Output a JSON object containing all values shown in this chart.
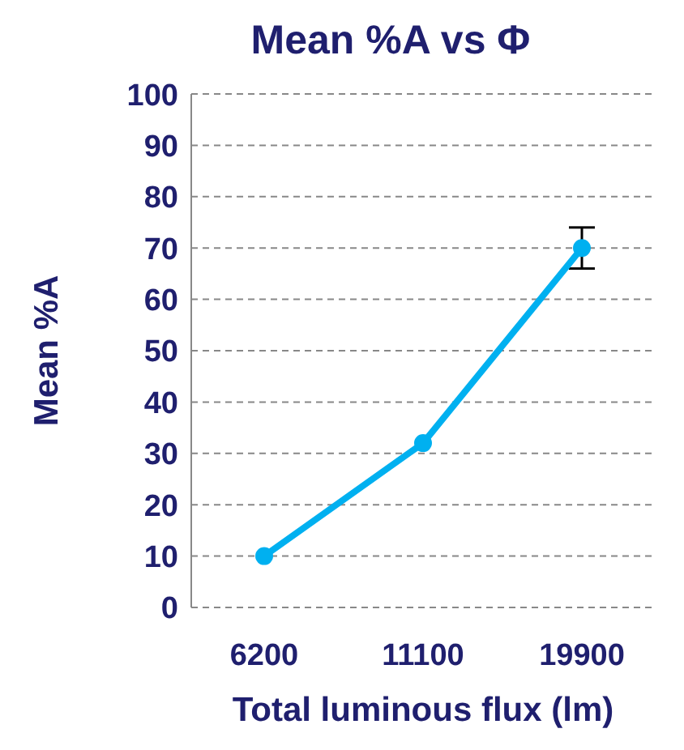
{
  "chart_data": {
    "type": "line",
    "title": "Mean %A vs Φ",
    "xlabel": "Total luminous flux (lm)",
    "ylabel": "Mean %A",
    "categories": [
      "6200",
      "11100",
      "19900"
    ],
    "series": [
      {
        "color": "#00b0f0",
        "values": [
          10,
          32,
          70
        ],
        "errors": [
          null,
          null,
          4
        ]
      }
    ],
    "ylim": [
      0,
      100
    ],
    "yticks": [
      0,
      10,
      20,
      30,
      40,
      50,
      60,
      70,
      80,
      90,
      100
    ],
    "grid": "y",
    "marker": "circle",
    "line_style": "solid",
    "legend": false
  }
}
